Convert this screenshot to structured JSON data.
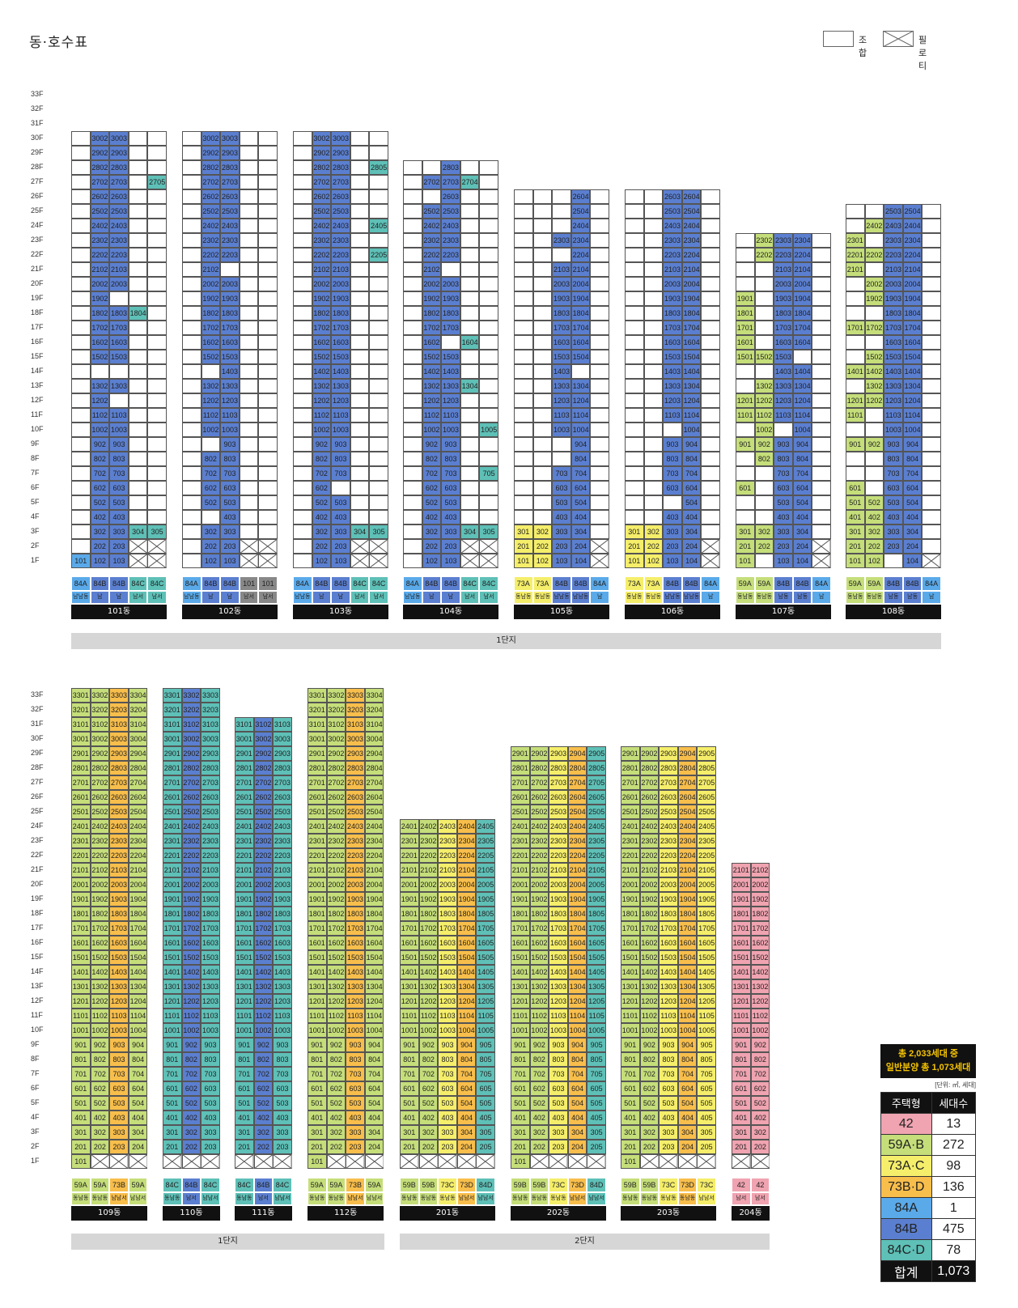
{
  "title": "동·호수표",
  "legend": {
    "union_label": "조합",
    "piloti_label": "필로티"
  },
  "colors": {
    "42": "#f0a3b0",
    "59": "#c5de7a",
    "73AC": "#f5ee6a",
    "73BD": "#f8be4b",
    "84A": "#5aaaea",
    "84B": "#5b7fd0",
    "84CD": "#5ec0b7",
    "101": "#888888"
  },
  "floor_labels": [
    "1F",
    "2F",
    "3F",
    "4F",
    "5F",
    "6F",
    "7F",
    "8F",
    "9F",
    "10F",
    "11F",
    "12F",
    "13F",
    "14F",
    "15F",
    "16F",
    "17F",
    "18F",
    "19F",
    "20F",
    "21F",
    "22F",
    "23F",
    "24F",
    "25F",
    "26F",
    "27F",
    "28F",
    "29F",
    "30F",
    "31F",
    "32F",
    "33F"
  ],
  "rows": [
    {
      "complex_label": "1단지",
      "buildings": [
        {
          "name": "101동",
          "units": [
            {
              "top": 30,
              "types": [
                "84A",
                "84B",
                "84B",
                "84C",
                "84C"
              ],
              "dirs": [
                "남남동",
                "남",
                "남",
                "남서",
                "남서"
              ],
              "special": {
                "2705": "84CD",
                "1804": "84CD",
                "304": "84CD",
                "305": "84CD",
                "101": "84A"
              }
            }
          ]
        },
        {
          "name": "102동",
          "units": [
            {
              "top": 30,
              "types": [
                "84A",
                "84B",
                "84B",
                "101",
                "101"
              ],
              "dirs": [
                "남남동",
                "남",
                "남",
                "남서",
                "남서"
              ]
            }
          ]
        },
        {
          "name": "103동",
          "units": [
            {
              "top": 30,
              "types": [
                "84A",
                "84B",
                "84B",
                "84C",
                "84C"
              ],
              "dirs": [
                "남남동",
                "남",
                "남",
                "남서",
                "남서"
              ]
            }
          ]
        },
        {
          "name": "104동",
          "units": [
            {
              "top": 28,
              "types": [
                "84A",
                "84B",
                "84B",
                "84C",
                "84C"
              ],
              "dirs": [
                "남남동",
                "남",
                "남",
                "남서",
                "남서"
              ]
            }
          ]
        },
        {
          "name": "105동",
          "units": [
            {
              "top": 26,
              "types": [
                "73A",
                "73A",
                "84B",
                "84B",
                "84A"
              ],
              "dirs": [
                "동남동",
                "동남동",
                "남남동",
                "남남동",
                "남"
              ]
            }
          ]
        },
        {
          "name": "106동",
          "units": [
            {
              "top": 26,
              "types": [
                "73A",
                "73A",
                "84B",
                "84B",
                "84A"
              ],
              "dirs": [
                "동남동",
                "동남동",
                "남남동",
                "남남동",
                "남"
              ]
            }
          ]
        },
        {
          "name": "107동",
          "units": [
            {
              "top": 23,
              "types": [
                "59A",
                "59A",
                "84B",
                "84B",
                "84A"
              ],
              "dirs": [
                "동남동",
                "동남동",
                "남동",
                "남동",
                "남"
              ]
            }
          ]
        },
        {
          "name": "108동",
          "units": [
            {
              "top": 25,
              "types": [
                "59A",
                "59A",
                "84B",
                "84B",
                "84A"
              ],
              "dirs": [
                "동남동",
                "동남동",
                "남동",
                "남동",
                "남"
              ]
            }
          ]
        }
      ]
    },
    {
      "complex_labels": [
        "1단지",
        "2단지"
      ],
      "buildings": [
        {
          "name": "109동",
          "types": [
            "59A",
            "59A",
            "73B",
            "59A"
          ],
          "dirs": [
            "동남동",
            "동남동",
            "남남서",
            "남남서"
          ]
        },
        {
          "name": "110동",
          "types": [
            "84C",
            "84B",
            "84C"
          ],
          "dirs": [
            "동남동",
            "남서",
            "남남서"
          ]
        },
        {
          "name": "111동",
          "types": [
            "84C",
            "84B",
            "84C"
          ],
          "dirs": [
            "동남동",
            "남서",
            "남남서"
          ]
        },
        {
          "name": "112동",
          "types": [
            "59A",
            "59A",
            "73B",
            "59A"
          ],
          "dirs": [
            "동남동",
            "동남동",
            "남남서",
            "남남서"
          ]
        },
        {
          "name": "201동",
          "types": [
            "59B",
            "59B",
            "73C",
            "73D",
            "84D"
          ],
          "dirs": [
            "동남동",
            "동남동",
            "동남동",
            "남남서",
            "남남서"
          ]
        },
        {
          "name": "202동",
          "types": [
            "59B",
            "59B",
            "73C",
            "73D",
            "84D"
          ],
          "dirs": [
            "동남동",
            "동남동",
            "동남동",
            "남남서",
            "남남서"
          ]
        },
        {
          "name": "203동",
          "types": [
            "59B",
            "59B",
            "73C",
            "73D",
            "73C"
          ],
          "dirs": [
            "동남동",
            "동남동",
            "동남동",
            "동남동",
            "남남서"
          ]
        },
        {
          "name": "204동",
          "types": [
            "42",
            "42"
          ],
          "dirs": [
            "남서",
            "남서"
          ]
        }
      ]
    }
  ],
  "summary": {
    "headline_1": "총 2,033세대 중",
    "headline_2": "일반분양 총 1,073세대",
    "unit_note": "[단위: ㎡, 세대]",
    "col_type": "주택형",
    "col_count": "세대수",
    "rows": [
      {
        "type": "42",
        "count": "13",
        "color": "#f0a3b0"
      },
      {
        "type": "59A·B",
        "count": "272",
        "color": "#c5de7a"
      },
      {
        "type": "73A·C",
        "count": "98",
        "color": "#f5ee6a"
      },
      {
        "type": "73B·D",
        "count": "136",
        "color": "#f8be4b"
      },
      {
        "type": "84A",
        "count": "1",
        "color": "#5aaaea"
      },
      {
        "type": "84B",
        "count": "475",
        "color": "#5b7fd0"
      },
      {
        "type": "84C·D",
        "count": "78",
        "color": "#5ec0b7"
      }
    ],
    "total_label": "합계",
    "total_count": "1,073"
  },
  "grid": {
    "b101": {
      "cols": 5,
      "top": 30,
      "pil": [
        [
          1,
          3
        ],
        [
          1,
          4
        ],
        [
          2,
          3
        ],
        [
          2,
          4
        ]
      ],
      "sale": {
        "1": [
          null,
          "102",
          "103"
        ],
        "1b": [
          "101"
        ],
        "2": [
          null,
          "202",
          "203"
        ],
        "3": [
          null,
          "302",
          "303",
          "304",
          "305"
        ],
        "4": [
          null,
          "402",
          "403"
        ],
        "5": [
          null,
          "502",
          "503"
        ],
        "6": [
          null,
          "602",
          "603"
        ],
        "7": [
          null,
          "702",
          "703"
        ],
        "8": [
          null,
          "802",
          "803"
        ],
        "9": [
          null,
          "902",
          "903"
        ],
        "10": [
          null,
          "1002",
          "1003"
        ],
        "11": [
          null,
          "1102",
          "1103"
        ],
        "12": [
          null,
          "1202"
        ],
        "13": [
          null,
          "1302",
          "1303"
        ],
        "15": [
          null,
          "1502",
          "1503"
        ],
        "16": [
          null,
          "1602",
          "1603"
        ],
        "17": [
          null,
          "1702",
          "1703"
        ],
        "18": [
          null,
          "1802",
          "1803",
          "1804"
        ],
        "19": [
          null,
          "1902"
        ],
        "20": [
          null,
          "2002",
          "2003"
        ],
        "21": [
          null,
          "2102",
          "2103"
        ],
        "22": [
          null,
          "2202",
          "2203"
        ],
        "23": [
          null,
          "2302",
          "2303"
        ],
        "24": [
          null,
          "2402",
          "2403"
        ],
        "25": [
          null,
          "2502",
          "2503"
        ],
        "26": [
          null,
          "2602",
          "2603"
        ],
        "27": [
          null,
          "2702",
          "2703",
          null,
          "2705"
        ],
        "28": [
          null,
          "2802",
          "2803"
        ],
        "29": [
          null,
          "2902",
          "2903"
        ],
        "30": [
          null,
          "3002",
          "3003"
        ]
      }
    }
  }
}
